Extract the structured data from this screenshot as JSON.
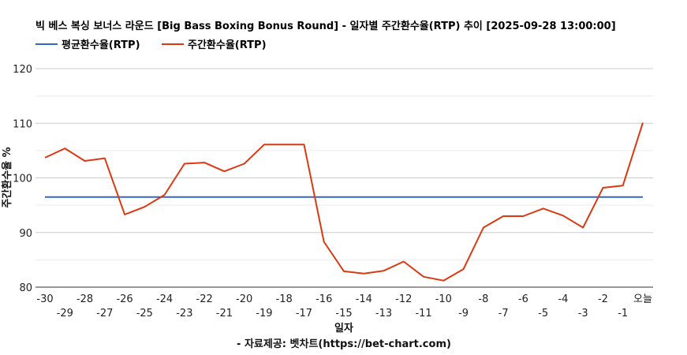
{
  "chart_data": {
    "type": "line",
    "title": "빅 베스 복싱 보너스 라운드 [Big Bass Boxing Bonus Round] - 일자별 주간환수율(RTP) 추이 [2025-09-28 13:00:00]",
    "xlabel": "일자",
    "ylabel": "주간환수율 %",
    "source": "- 자료제공: 벳차트(https://bet-chart.com)",
    "ylim": [
      80,
      120
    ],
    "yticks": [
      80,
      90,
      100,
      110,
      120
    ],
    "grid": true,
    "legend_position": "top-left",
    "categories": [
      "-30",
      "-29",
      "-28",
      "-27",
      "-26",
      "-25",
      "-24",
      "-23",
      "-22",
      "-21",
      "-20",
      "-19",
      "-18",
      "-17",
      "-16",
      "-15",
      "-14",
      "-13",
      "-12",
      "-11",
      "-10",
      "-9",
      "-8",
      "-7",
      "-6",
      "-5",
      "-4",
      "-3",
      "-2",
      "-1",
      "오늘"
    ],
    "series": [
      {
        "name": "평균환수율(RTP)",
        "color": "#3366cc",
        "values": [
          96.5,
          96.5,
          96.5,
          96.5,
          96.5,
          96.5,
          96.5,
          96.5,
          96.5,
          96.5,
          96.5,
          96.5,
          96.5,
          96.5,
          96.5,
          96.5,
          96.5,
          96.5,
          96.5,
          96.5,
          96.5,
          96.5,
          96.5,
          96.5,
          96.5,
          96.5,
          96.5,
          96.5,
          96.5,
          96.5,
          96.5
        ]
      },
      {
        "name": "주간환수율(RTP)",
        "color": "#dc3912",
        "values": [
          103.7,
          105.4,
          103.1,
          103.6,
          93.3,
          94.7,
          96.9,
          102.6,
          102.8,
          101.2,
          102.6,
          106.1,
          106.1,
          106.1,
          88.3,
          82.9,
          82.5,
          83.0,
          84.7,
          81.9,
          81.2,
          83.3,
          90.9,
          93.0,
          93.0,
          94.4,
          93.1,
          90.9,
          98.2,
          98.6,
          110.1
        ]
      }
    ]
  }
}
